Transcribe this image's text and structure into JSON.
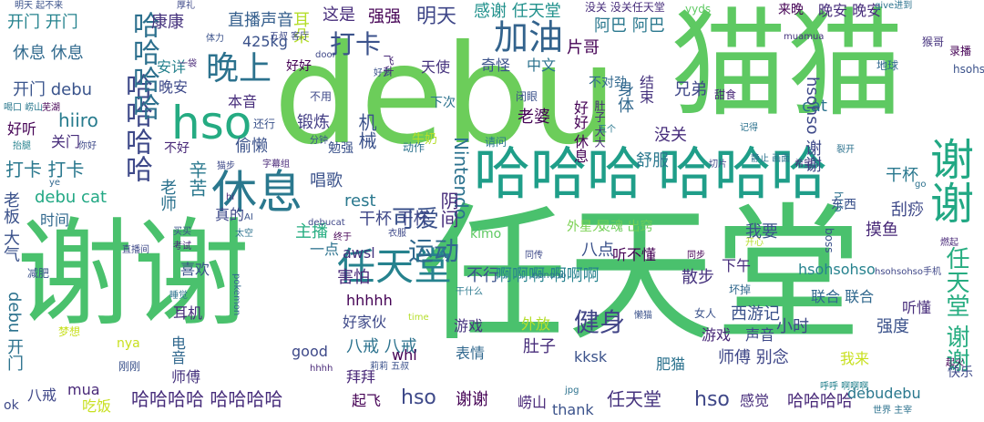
{
  "words": [
    {
      "text": "debu",
      "color": "#6ccd5a"
    },
    {
      "text": "谢谢",
      "color": "#4ac16d"
    },
    {
      "text": "任天堂",
      "color": "#4ac16d"
    },
    {
      "text": "猫猫",
      "color": "#5ec962"
    },
    {
      "text": "哈哈哈",
      "color": "#1f9e89"
    },
    {
      "text": "哈哈哈",
      "color": "#1f9e89"
    },
    {
      "text": "hso",
      "color": "#25ab82"
    },
    {
      "text": "休息",
      "color": "#2a788e"
    },
    {
      "text": "晚上",
      "color": "#2c728e"
    },
    {
      "text": "加油",
      "color": "#33638d"
    },
    {
      "text": "打卡",
      "color": "#3b528b"
    },
    {
      "text": "谢谢",
      "color": "#22a884"
    },
    {
      "text": "任天堂",
      "color": "#26828e"
    },
    {
      "text": "哈哈哈哈",
      "color": "#3e4989"
    },
    {
      "text": "哈哈哈哈",
      "color": "#2d708e"
    },
    {
      "text": "运动",
      "color": "#31688e"
    },
    {
      "text": "健身",
      "color": "#414487"
    },
    {
      "text": "可爱",
      "color": "#3b528b"
    },
    {
      "text": "明天",
      "color": "#3f4788"
    },
    {
      "text": "这是",
      "color": "#472d7b"
    },
    {
      "text": "强强",
      "color": "#440154"
    },
    {
      "text": "感谢 任天堂",
      "color": "#21918c"
    },
    {
      "text": "直播声音",
      "color": "#355f8d"
    },
    {
      "text": "康康",
      "color": "#46337e"
    },
    {
      "text": "开门 开门",
      "color": "#25838e"
    },
    {
      "text": "休息 休息",
      "color": "#306a8e"
    },
    {
      "text": "开门 debu",
      "color": "#3a548c"
    },
    {
      "text": "hiiro",
      "color": "#287c8e"
    },
    {
      "text": "好听",
      "color": "#440154"
    },
    {
      "text": "关门",
      "color": "#472d7b"
    },
    {
      "text": "打卡 打卡",
      "color": "#2a788e"
    },
    {
      "text": "debu cat",
      "color": "#22a884"
    },
    {
      "text": "时间",
      "color": "#31688e"
    },
    {
      "text": "老板 大气",
      "color": "#3b528b"
    },
    {
      "text": "debu 开门",
      "color": "#2c728e"
    },
    {
      "text": "八戒",
      "color": "#3f4788"
    },
    {
      "text": "ok",
      "color": "#3e4989"
    },
    {
      "text": "mua",
      "color": "#482878"
    },
    {
      "text": "吃饭",
      "color": "#c8e020"
    },
    {
      "text": "师傅",
      "color": "#46337e"
    },
    {
      "text": "电音",
      "color": "#31688e"
    },
    {
      "text": "耳机",
      "color": "#472d7b"
    },
    {
      "text": "喜欢",
      "color": "#3b528b"
    },
    {
      "text": "主播",
      "color": "#26ad81"
    },
    {
      "text": "真的",
      "color": "#3e4989"
    },
    {
      "text": "老师",
      "color": "#2c728e"
    },
    {
      "text": "辛苦",
      "color": "#2a788e"
    },
    {
      "text": "偷懒",
      "color": "#3b528b"
    },
    {
      "text": "锻炼",
      "color": "#433e85"
    },
    {
      "text": "本音",
      "color": "#472d7b"
    },
    {
      "text": "晚安",
      "color": "#3e4989"
    },
    {
      "text": "安详",
      "color": "#26828e"
    },
    {
      "text": "425kg",
      "color": "#3b528b"
    },
    {
      "text": "耳朵",
      "color": "#b5de2b"
    },
    {
      "text": "好好",
      "color": "#440154"
    },
    {
      "text": "天使",
      "color": "#46337e"
    },
    {
      "text": "中文",
      "color": "#2c728e"
    },
    {
      "text": "奇怪",
      "color": "#3b528b"
    },
    {
      "text": "阿巴 阿巴",
      "color": "#2a788e"
    },
    {
      "text": "片哥",
      "color": "#440154"
    },
    {
      "text": "晚安 晚安",
      "color": "#472d7b"
    },
    {
      "text": "来晚",
      "color": "#440154"
    },
    {
      "text": "cat",
      "color": "#2c728e"
    },
    {
      "text": "兄弟",
      "color": "#3f4788"
    },
    {
      "text": "没关",
      "color": "#472d7b"
    },
    {
      "text": "舒服",
      "color": "#2a788e"
    },
    {
      "text": "摸鱼",
      "color": "#482878"
    },
    {
      "text": "干杯",
      "color": "#2a788e"
    },
    {
      "text": "刮痧",
      "color": "#3e4989"
    },
    {
      "text": "老婆",
      "color": "#440154"
    },
    {
      "text": "机械",
      "color": "#3b528b"
    },
    {
      "text": "身体",
      "color": "#31688e"
    },
    {
      "text": "结束",
      "color": "#46337e"
    },
    {
      "text": "好好 休息",
      "color": "#440154"
    },
    {
      "text": "Nintendo",
      "color": "#2c728e"
    },
    {
      "text": "hsohso 谢谢",
      "color": "#3e4989"
    },
    {
      "text": "唱歌",
      "color": "#3b528b"
    },
    {
      "text": "干杯 干杯",
      "color": "#3f4788"
    },
    {
      "text": "rest",
      "color": "#2a788e"
    },
    {
      "text": "阴间",
      "color": "#472d7b"
    },
    {
      "text": "我要",
      "color": "#3b528b"
    },
    {
      "text": "一点",
      "color": "#2c728e"
    },
    {
      "text": "awsl",
      "color": "#46337e"
    },
    {
      "text": "八点",
      "color": "#3b528b"
    },
    {
      "text": "听不懂",
      "color": "#440154"
    },
    {
      "text": "不行",
      "color": "#3b528b"
    },
    {
      "text": "害怕",
      "color": "#482878"
    },
    {
      "text": "hhhhh",
      "color": "#440154"
    },
    {
      "text": "好家伙",
      "color": "#3e4989"
    },
    {
      "text": "啊啊啊 啊啊啊",
      "color": "#26828e"
    },
    {
      "text": "游戏",
      "color": "#46337e"
    },
    {
      "text": "表情",
      "color": "#31688e"
    },
    {
      "text": "外放",
      "color": "#b5de2b"
    },
    {
      "text": "肚子",
      "color": "#472d7b"
    },
    {
      "text": "kksk",
      "color": "#3b528b"
    },
    {
      "text": "散步",
      "color": "#46337e"
    },
    {
      "text": "下午",
      "color": "#472d7b"
    },
    {
      "text": "西游记",
      "color": "#3b528b"
    },
    {
      "text": "小时",
      "color": "#3e4989"
    },
    {
      "text": "联合 联合",
      "color": "#31688e"
    },
    {
      "text": "听懂",
      "color": "#472d7b"
    },
    {
      "text": "强度",
      "color": "#3b528b"
    },
    {
      "text": "hsohsohso",
      "color": "#26828e"
    },
    {
      "text": "任天堂 谢谢",
      "color": "#27ad81"
    },
    {
      "text": "声音",
      "color": "#3e4989"
    },
    {
      "text": "游戏",
      "color": "#482878"
    },
    {
      "text": "我来",
      "color": "#c8e020"
    },
    {
      "text": "师傅 别念",
      "color": "#3f4788"
    },
    {
      "text": "肥猫",
      "color": "#2c728e"
    },
    {
      "text": "八戒 八戒",
      "color": "#2c728e"
    },
    {
      "text": "good",
      "color": "#3e4989"
    },
    {
      "text": "whl",
      "color": "#440154"
    },
    {
      "text": "拜拜",
      "color": "#482878"
    },
    {
      "text": "哈哈哈哈 哈哈哈哈",
      "color": "#472d7b"
    },
    {
      "text": "hso",
      "color": "#3e4989"
    },
    {
      "text": "谢谢",
      "color": "#440154"
    },
    {
      "text": "任天堂",
      "color": "#46337e"
    },
    {
      "text": "hso",
      "color": "#3f4788"
    },
    {
      "text": "感觉",
      "color": "#472d7b"
    },
    {
      "text": "哈哈哈哈",
      "color": "#482878"
    },
    {
      "text": "debudebu",
      "color": "#2a788e"
    },
    {
      "text": "起飞",
      "color": "#440154"
    },
    {
      "text": "崂山",
      "color": "#482878"
    },
    {
      "text": "thank",
      "color": "#3b528b"
    },
    {
      "text": "快乐",
      "color": "#3e4989"
    },
    {
      "text": "nya",
      "color": "#c8e020"
    },
    {
      "text": "yyds",
      "color": "#5ec962"
    },
    {
      "text": "灵魂 出窍",
      "color": "#6ccd5a"
    },
    {
      "text": "外星人",
      "color": "#7ad151"
    },
    {
      "text": "牛奶",
      "color": "#b5de2b"
    },
    {
      "text": "不对劲",
      "color": "#31688e"
    },
    {
      "text": "hhh",
      "color": "#2c728e"
    },
    {
      "text": "boss",
      "color": "#3b528b"
    },
    {
      "text": "kimo",
      "color": "#5ec962"
    },
    {
      "text": "录播",
      "color": "#440154"
    },
    {
      "text": "地球",
      "color": "#31688e"
    },
    {
      "text": "猴哥",
      "color": "#46337e"
    },
    {
      "text": "hsohso",
      "color": "#3b528b"
    },
    {
      "text": "甜食",
      "color": "#482878"
    },
    {
      "text": "闭眼",
      "color": "#3b528b"
    },
    {
      "text": "下次",
      "color": "#2c728e"
    },
    {
      "text": "不用",
      "color": "#3e4989"
    },
    {
      "text": "还行",
      "color": "#3b528b"
    },
    {
      "text": "请问",
      "color": "#2a788e"
    },
    {
      "text": "分钟",
      "color": "#3b528b"
    },
    {
      "text": "勉强",
      "color": "#3b528b"
    },
    {
      "text": "动作",
      "color": "#2c728e"
    },
    {
      "text": "字幕组",
      "color": "#482878"
    },
    {
      "text": "切片",
      "color": "#3e4989"
    },
    {
      "text": "静止 画面",
      "color": "#2c728e"
    },
    {
      "text": "希望",
      "color": "#46337e"
    },
    {
      "text": "裂开",
      "color": "#2c728e"
    },
    {
      "text": "东西",
      "color": "#3b528b"
    },
    {
      "text": "开心",
      "color": "#b5de2b"
    },
    {
      "text": "燃起",
      "color": "#482878"
    },
    {
      "text": "坏掉",
      "color": "#31688e"
    },
    {
      "text": "同步",
      "color": "#440154"
    },
    {
      "text": "同传",
      "color": "#3e4989"
    },
    {
      "text": "nonono",
      "color": "#2c728e"
    },
    {
      "text": "干什么",
      "color": "#2a788e"
    },
    {
      "text": "懒猫",
      "color": "#3b528b"
    },
    {
      "text": "女人",
      "color": "#3b528b"
    },
    {
      "text": "jpg",
      "color": "#2c728e"
    },
    {
      "text": "世界 主宰",
      "color": "#2c728e"
    },
    {
      "text": "呼呼 啊啊啊",
      "color": "#26828e"
    },
    {
      "text": "起火",
      "color": "#440154"
    },
    {
      "text": "减肥",
      "color": "#3b528b"
    },
    {
      "text": "梦想",
      "color": "#c8e020"
    },
    {
      "text": "刚刚",
      "color": "#3b528b"
    },
    {
      "text": "睡觉",
      "color": "#2c728e"
    },
    {
      "text": "直播间",
      "color": "#3e4989"
    },
    {
      "text": "考试",
      "color": "#482878"
    },
    {
      "text": "太空",
      "color": "#2c728e"
    },
    {
      "text": "买买",
      "color": "#3b528b"
    },
    {
      "text": "debucat",
      "color": "#3f4788"
    },
    {
      "text": "衣服",
      "color": "#3e4989"
    },
    {
      "text": "终于",
      "color": "#440154"
    },
    {
      "text": "hhhh",
      "color": "#482878"
    },
    {
      "text": "莉莉 五叔",
      "color": "#3b528b"
    },
    {
      "text": "pokemon",
      "color": "#31688e"
    },
    {
      "text": "time",
      "color": "#b5de2b"
    },
    {
      "text": "明天 起不来",
      "color": "#3b528b"
    },
    {
      "text": "喝口 崂山",
      "color": "#2a788e"
    },
    {
      "text": "芜湖",
      "color": "#440154"
    },
    {
      "text": "抬腿",
      "color": "#26828e"
    },
    {
      "text": "你好",
      "color": "#3e4989"
    },
    {
      "text": "不好",
      "color": "#482878"
    },
    {
      "text": "ye",
      "color": "#31688e"
    },
    {
      "text": "一袋",
      "color": "#482878"
    },
    {
      "text": "厚礼",
      "color": "#3e4989"
    },
    {
      "text": "体力",
      "color": "#3b528b"
    },
    {
      "text": "五叔 客厅",
      "color": "#3e4989"
    },
    {
      "text": "door",
      "color": "#3f4788"
    },
    {
      "text": "没关 没关任天堂",
      "color": "#472d7b"
    },
    {
      "text": "muamua",
      "color": "#46337e"
    },
    {
      "text": "give进到",
      "color": "#2c728e"
    },
    {
      "text": "好多",
      "color": "#3b528b"
    },
    {
      "text": "飞升",
      "color": "#482878"
    },
    {
      "text": "肚子 大大",
      "color": "#482878"
    },
    {
      "text": "五个",
      "color": "#2a788e"
    },
    {
      "text": "记得",
      "color": "#2c728e"
    },
    {
      "text": "猫步",
      "color": "#3e4989"
    },
    {
      "text": "go",
      "color": "#2c728e"
    },
    {
      "text": "hi",
      "color": "#482878"
    },
    {
      "text": "AI",
      "color": "#3b528b"
    },
    {
      "text": "hsohsohso手机",
      "color": "#3f4788"
    }
  ]
}
